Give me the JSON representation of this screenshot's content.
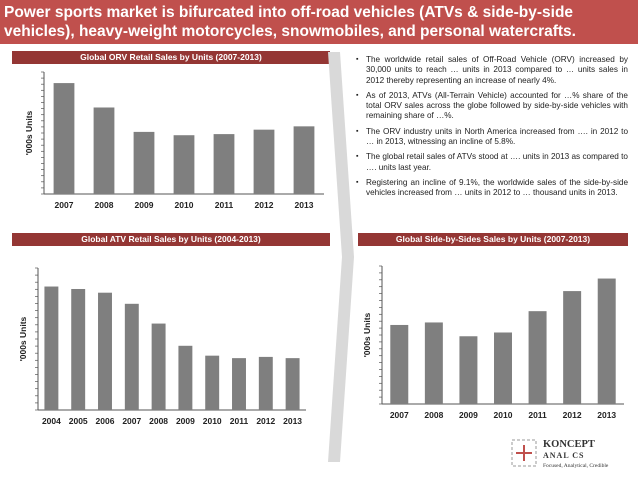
{
  "header": {
    "line1": "Power sports market is bifurcated into off-road vehicles (ATVs & side-by-side",
    "line2": "vehicles), heavy-weight motorcycles, snowmobiles, and personal watercrafts."
  },
  "colors": {
    "title_bg": "#c0504d",
    "section_bg": "#943634",
    "bar": "#7f7f7f",
    "arrow": "#d9d9d9"
  },
  "chart_data": [
    {
      "id": "orv",
      "type": "bar",
      "title": "Global ORV Retail Sales by Units (2007-2013)",
      "ylabel": "'000s Units",
      "xlabel": "",
      "categories": [
        "2007",
        "2008",
        "2009",
        "2010",
        "2011",
        "2012",
        "2013"
      ],
      "values": [
        100,
        78,
        56,
        53,
        54,
        58,
        61
      ],
      "ylim": [
        0,
        110
      ],
      "grid": false
    },
    {
      "id": "atv",
      "type": "bar",
      "title": "Global ATV Retail Sales by Units (2004-2013)",
      "ylabel": "'000s Units",
      "xlabel": "",
      "categories": [
        "2004",
        "2005",
        "2006",
        "2007",
        "2008",
        "2009",
        "2010",
        "2011",
        "2012",
        "2013"
      ],
      "values": [
        100,
        98,
        95,
        86,
        70,
        52,
        44,
        42,
        43,
        42
      ],
      "ylim": [
        0,
        115
      ],
      "grid": false
    },
    {
      "id": "sxs",
      "type": "bar",
      "title": "Global Side-by-Sides Sales by Units (2007-2013)",
      "ylabel": "'000s Units",
      "xlabel": "",
      "categories": [
        "2007",
        "2008",
        "2009",
        "2010",
        "2011",
        "2012",
        "2013"
      ],
      "values": [
        63,
        65,
        54,
        57,
        74,
        90,
        100
      ],
      "ylim": [
        0,
        110
      ],
      "grid": false
    }
  ],
  "bullets": [
    "The worldwide retail sales of Off-Road Vehicle (ORV) increased by 30,000 units to reach … units in 2013 compared to … units sales in 2012 thereby representing an increase of nearly 4%.",
    "As of 2013, ATVs (All-Terrain Vehicle)  accounted for …% share of the total ORV sales across the globe followed by side-by-side vehicles with remaining share of …%.",
    "The ORV industry units in North America increased from …. in 2012 to … in 2013, witnessing an incline of 5.8%.",
    "The global retail sales of ATVs stood at …. units in 2013 as compared to …. units last year.",
    "Registering an incline of 9.1%, the worldwide sales of the side-by-side vehicles increased from … units in 2012 to … thousand units in 2013."
  ],
  "bullet_icon": "square-bullet-icon",
  "logo": {
    "name_line1": "KONCEPT",
    "name_line2": "ANAL   CS",
    "tagline": "Focused, Analytical, Credible"
  }
}
